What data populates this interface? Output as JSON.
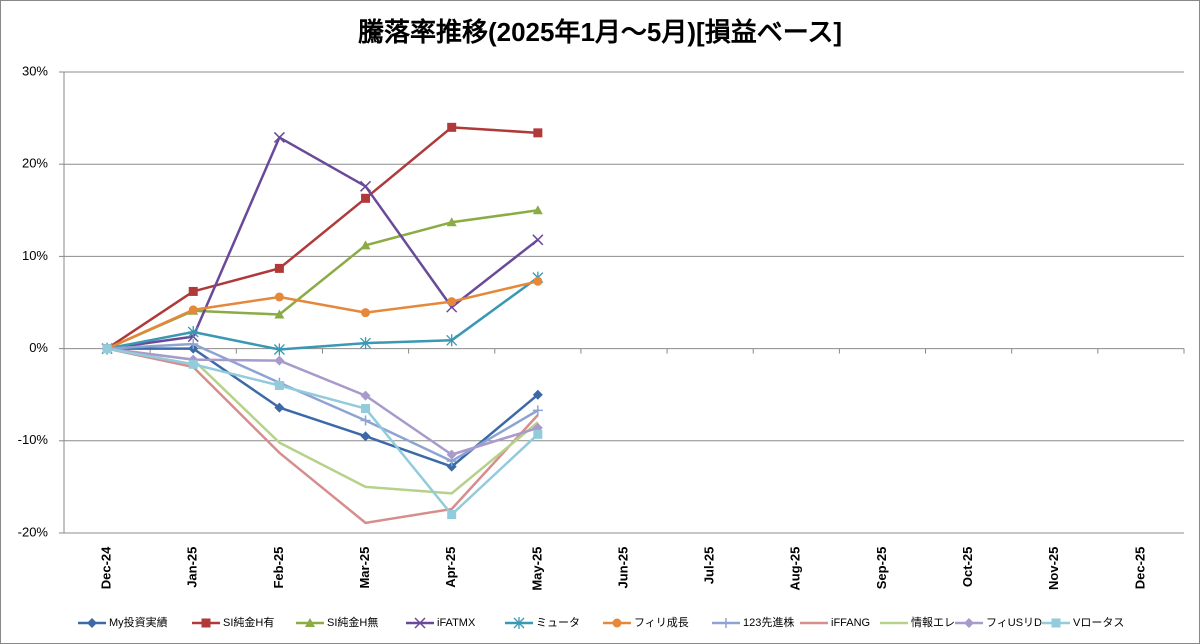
{
  "chart_data": {
    "type": "line",
    "title": "騰落率推移(2025年1月～5月)[損益ベース]",
    "categories": [
      "Dec-24",
      "Jan-25",
      "Feb-25",
      "Mar-25",
      "Apr-25",
      "May-25",
      "Jun-25",
      "Jul-25",
      "Aug-25",
      "Sep-25",
      "Oct-25",
      "Nov-25",
      "Dec-25"
    ],
    "ylim": [
      -20,
      30
    ],
    "yticks": [
      {
        "value": -20,
        "label": "-20%"
      },
      {
        "value": -10,
        "label": "-10%"
      },
      {
        "value": 0,
        "label": "0%"
      },
      {
        "value": 10,
        "label": "10%"
      },
      {
        "value": 20,
        "label": "20%"
      },
      {
        "value": 30,
        "label": "30%"
      }
    ],
    "grid": true,
    "legend": "bottom",
    "series": [
      {
        "name": "My投資実績",
        "color": "#3d6aa6",
        "marker": "diamond",
        "values": [
          0,
          0,
          -6.4,
          -9.5,
          -12.8,
          -5.0,
          null,
          null,
          null,
          null,
          null,
          null,
          null
        ]
      },
      {
        "name": "SI純金H有",
        "color": "#b03a3a",
        "marker": "square",
        "values": [
          0,
          6.2,
          8.7,
          16.3,
          24.0,
          23.4,
          null,
          null,
          null,
          null,
          null,
          null,
          null
        ]
      },
      {
        "name": "SI純金H無",
        "color": "#8bab45",
        "marker": "triangle",
        "values": [
          0,
          4.1,
          3.7,
          11.2,
          13.7,
          15.0,
          null,
          null,
          null,
          null,
          null,
          null,
          null
        ]
      },
      {
        "name": "iFATMX",
        "color": "#6a4a98",
        "marker": "x",
        "values": [
          0,
          1.3,
          22.9,
          17.6,
          4.5,
          11.8,
          null,
          null,
          null,
          null,
          null,
          null,
          null
        ]
      },
      {
        "name": "ミュータ",
        "color": "#3a98b2",
        "marker": "star",
        "values": [
          0,
          1.8,
          -0.1,
          0.6,
          0.9,
          7.7,
          null,
          null,
          null,
          null,
          null,
          null,
          null
        ]
      },
      {
        "name": "フィリ成長",
        "color": "#e5883a",
        "marker": "circle",
        "values": [
          0,
          4.2,
          5.6,
          3.9,
          5.1,
          7.3,
          null,
          null,
          null,
          null,
          null,
          null,
          null
        ]
      },
      {
        "name": "123先進株",
        "color": "#8da4d2",
        "marker": "plus",
        "values": [
          0,
          0.5,
          -3.7,
          -7.8,
          -12.2,
          -6.7,
          null,
          null,
          null,
          null,
          null,
          null,
          null
        ]
      },
      {
        "name": "iFFANG",
        "color": "#d68e8d",
        "marker": "none",
        "values": [
          0,
          -2.0,
          -11.3,
          -18.9,
          -17.4,
          -7.2,
          null,
          null,
          null,
          null,
          null,
          null,
          null
        ]
      },
      {
        "name": "情報エレ",
        "color": "#b6d28a",
        "marker": "none",
        "values": [
          0,
          -1.2,
          -10.2,
          -15.0,
          -15.7,
          -8.0,
          null,
          null,
          null,
          null,
          null,
          null,
          null
        ]
      },
      {
        "name": "フィUSリD",
        "color": "#a89acb",
        "marker": "diamond",
        "values": [
          0,
          -1.2,
          -1.3,
          -5.1,
          -11.5,
          -8.6,
          null,
          null,
          null,
          null,
          null,
          null,
          null
        ]
      },
      {
        "name": "Vロータス",
        "color": "#92cbdc",
        "marker": "square",
        "values": [
          0,
          -1.7,
          -4.0,
          -6.5,
          -18.0,
          -9.3,
          null,
          null,
          null,
          null,
          null,
          null,
          null
        ]
      }
    ]
  }
}
